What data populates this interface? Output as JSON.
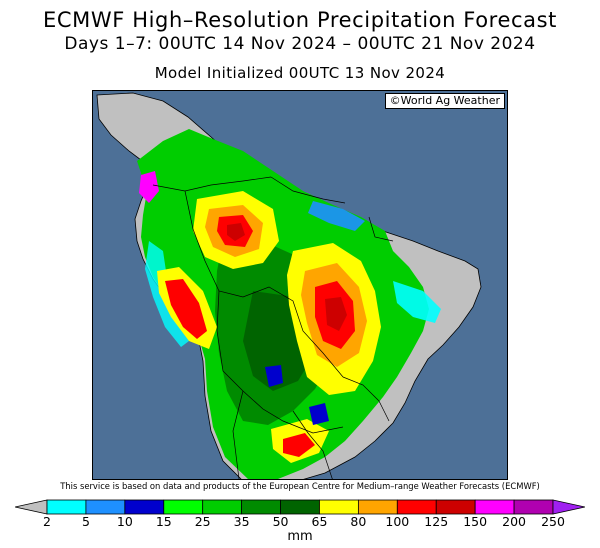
{
  "header": {
    "title": "ECMWF High–Resolution Precipitation Forecast",
    "dates": "Days 1–7: 00UTC 14 Nov 2024 – 00UTC 21 Nov 2024",
    "initialized": "Model Initialized 00UTC 13 Nov 2024"
  },
  "map": {
    "credit": "©World Ag Weather",
    "ocean_color": "#4d7097",
    "land_dry_color": "#c0c0c0",
    "border_color": "#000000"
  },
  "disclaimer": "This service is based on data and products of the European Centre for Medium–range Weather Forecasts (ECMWF)",
  "legend": {
    "units": "mm",
    "ticks": [
      "2",
      "5",
      "10",
      "15",
      "25",
      "35",
      "50",
      "65",
      "80",
      "100",
      "125",
      "150",
      "200",
      "250"
    ],
    "colors": [
      "#00ffff",
      "#1e90ff",
      "#0000cd",
      "#00ff00",
      "#00cd00",
      "#008b00",
      "#006400",
      "#ffff00",
      "#ffa500",
      "#ff0000",
      "#cd0000",
      "#ff00ff",
      "#b000b0"
    ],
    "below_color": "#c0c0c0",
    "above_color": "#a020f0"
  }
}
